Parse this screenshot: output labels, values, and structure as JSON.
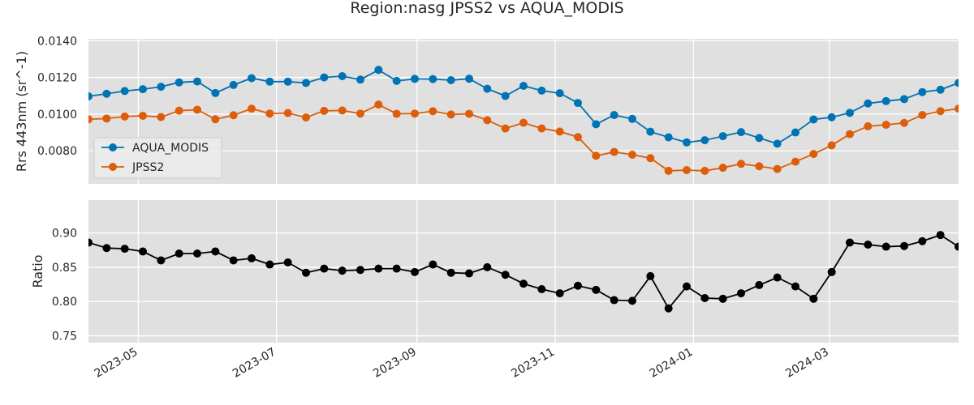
{
  "chart_data": [
    {
      "type": "line",
      "title": "Region:nasg JPSS2 vs AQUA_MODIS",
      "ylabel": "Rrs 443nm (sr^-1)",
      "ylim": [
        0.0062,
        0.0141
      ],
      "xlim": [
        "2023-04-09",
        "2024-04-27"
      ],
      "yticks": [
        0.008,
        0.01,
        0.012,
        0.014
      ],
      "ytick_labels": [
        "0.0080",
        "0.0100",
        "0.0120",
        "0.0140"
      ],
      "legend": "center-left",
      "grid": true,
      "x": [
        "2023-04-09",
        "2023-04-17",
        "2023-04-25",
        "2023-05-03",
        "2023-05-11",
        "2023-05-19",
        "2023-05-27",
        "2023-06-04",
        "2023-06-12",
        "2023-06-20",
        "2023-06-28",
        "2023-07-06",
        "2023-07-14",
        "2023-07-22",
        "2023-07-30",
        "2023-08-07",
        "2023-08-15",
        "2023-08-23",
        "2023-08-31",
        "2023-09-08",
        "2023-09-16",
        "2023-09-24",
        "2023-10-02",
        "2023-10-10",
        "2023-10-18",
        "2023-10-26",
        "2023-11-03",
        "2023-11-11",
        "2023-11-19",
        "2023-11-27",
        "2023-12-05",
        "2023-12-13",
        "2023-12-21",
        "2023-12-29",
        "2024-01-06",
        "2024-01-14",
        "2024-01-22",
        "2024-01-30",
        "2024-02-07",
        "2024-02-15",
        "2024-02-23",
        "2024-03-02",
        "2024-03-10",
        "2024-03-18",
        "2024-03-26",
        "2024-04-03",
        "2024-04-11",
        "2024-04-19",
        "2024-04-27"
      ],
      "series": [
        {
          "name": "AQUA_MODIS",
          "color": "#0173b2",
          "values": [
            0.01097,
            0.01111,
            0.01126,
            0.01136,
            0.01149,
            0.01173,
            0.01178,
            0.01115,
            0.01159,
            0.01196,
            0.01177,
            0.01177,
            0.0117,
            0.012,
            0.01207,
            0.01188,
            0.01241,
            0.01181,
            0.01192,
            0.01191,
            0.01185,
            0.01193,
            0.01138,
            0.01099,
            0.01154,
            0.01128,
            0.01114,
            0.01061,
            0.00945,
            0.00995,
            0.00974,
            0.00904,
            0.00874,
            0.00846,
            0.00858,
            0.0088,
            0.00902,
            0.0087,
            0.00839,
            0.009,
            0.00971,
            0.00983,
            0.01007,
            0.01058,
            0.01071,
            0.01082,
            0.0112,
            0.01133,
            0.0117
          ]
        },
        {
          "name": "JPSS2",
          "color": "#de5d0a",
          "values": [
            0.00972,
            0.00976,
            0.00987,
            0.00991,
            0.00984,
            0.01019,
            0.01024,
            0.00972,
            0.00994,
            0.0103,
            0.01003,
            0.01006,
            0.00982,
            0.01018,
            0.0102,
            0.01003,
            0.01052,
            0.01002,
            0.01003,
            0.01016,
            0.00998,
            0.01002,
            0.00967,
            0.00922,
            0.00953,
            0.00922,
            0.00905,
            0.00875,
            0.00773,
            0.00794,
            0.00779,
            0.0076,
            0.00691,
            0.00695,
            0.00691,
            0.00708,
            0.00729,
            0.00716,
            0.00701,
            0.00741,
            0.00783,
            0.0083,
            0.00891,
            0.00934,
            0.00942,
            0.00952,
            0.00995,
            0.01016,
            0.0103
          ]
        }
      ]
    },
    {
      "type": "line",
      "ylabel": "Ratio",
      "ylim": [
        0.74,
        0.948
      ],
      "yticks": [
        0.75,
        0.8,
        0.85,
        0.9
      ],
      "ytick_labels": [
        "0.75",
        "0.80",
        "0.85",
        "0.90"
      ],
      "xtick_labels": [
        "2023-05",
        "2023-07",
        "2023-09",
        "2023-11",
        "2024-01",
        "2024-03"
      ],
      "xtick_dates": [
        "2023-05-01",
        "2023-07-01",
        "2023-09-01",
        "2023-11-01",
        "2024-01-01",
        "2024-03-01"
      ],
      "grid": true,
      "series": [
        {
          "color": "#000000",
          "values": [
            0.886,
            0.878,
            0.877,
            0.873,
            0.86,
            0.87,
            0.87,
            0.873,
            0.86,
            0.863,
            0.854,
            0.857,
            0.842,
            0.848,
            0.845,
            0.846,
            0.848,
            0.848,
            0.843,
            0.854,
            0.842,
            0.841,
            0.85,
            0.839,
            0.826,
            0.818,
            0.812,
            0.823,
            0.817,
            0.802,
            0.801,
            0.837,
            0.79,
            0.822,
            0.805,
            0.804,
            0.812,
            0.824,
            0.835,
            0.822,
            0.804,
            0.843,
            0.886,
            0.883,
            0.88,
            0.881,
            0.888,
            0.897,
            0.88
          ]
        }
      ]
    }
  ]
}
